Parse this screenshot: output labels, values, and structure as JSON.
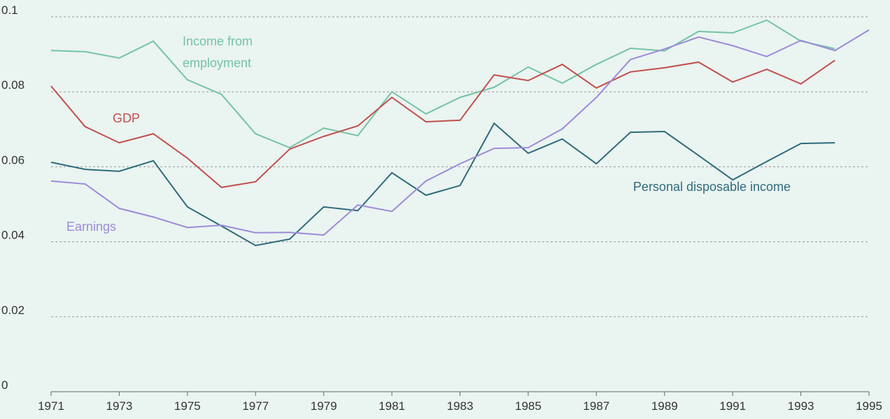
{
  "chart_data": {
    "type": "line",
    "x": [
      1971,
      1972,
      1973,
      1974,
      1975,
      1976,
      1977,
      1978,
      1979,
      1980,
      1981,
      1982,
      1983,
      1984,
      1985,
      1986,
      1987,
      1988,
      1989,
      1990,
      1991,
      1992,
      1993,
      1994,
      1995
    ],
    "series": [
      {
        "name": "Income from employment",
        "color": "#74c3a6",
        "values": [
          0.091,
          0.0907,
          0.089,
          0.0935,
          0.0832,
          0.0793,
          0.0688,
          0.0651,
          0.0703,
          0.0683,
          0.08,
          0.0741,
          0.0785,
          0.0812,
          0.0866,
          0.0823,
          0.0873,
          0.0916,
          0.0909,
          0.0961,
          0.0957,
          0.0991,
          0.0935,
          0.0915,
          null
        ]
      },
      {
        "name": "GDP",
        "color": "#c0504d",
        "values": [
          0.0815,
          0.0707,
          0.0664,
          0.0688,
          0.0623,
          0.0545,
          0.056,
          0.0647,
          0.0681,
          0.0709,
          0.0785,
          0.072,
          0.0724,
          0.0845,
          0.083,
          0.0873,
          0.081,
          0.0853,
          0.0864,
          0.0879,
          0.0826,
          0.086,
          0.0821,
          0.0884,
          null
        ]
      },
      {
        "name": "Personal disposable income",
        "color": "#2f6b7b",
        "values": [
          0.0612,
          0.0593,
          0.0588,
          0.0616,
          0.0493,
          0.0442,
          0.039,
          0.0407,
          0.0493,
          0.0483,
          0.0584,
          0.0524,
          0.055,
          0.0716,
          0.0636,
          0.0674,
          0.0608,
          0.0692,
          0.0694,
          0.063,
          0.0565,
          0.0614,
          0.0662,
          0.0664,
          null
        ]
      },
      {
        "name": "Earnings",
        "color": "#9d8ad8",
        "values": [
          0.0562,
          0.0554,
          0.0489,
          0.0466,
          0.0438,
          0.0444,
          0.0424,
          0.0425,
          0.0418,
          0.0498,
          0.0481,
          0.0562,
          0.0608,
          0.0649,
          0.0651,
          0.0701,
          0.0785,
          0.0886,
          0.0914,
          0.0946,
          0.0923,
          0.0894,
          0.0937,
          0.091,
          0.0965
        ]
      }
    ],
    "xlim": [
      1971,
      1995
    ],
    "xticks": [
      1971,
      1973,
      1975,
      1977,
      1979,
      1981,
      1983,
      1985,
      1987,
      1989,
      1991,
      1993,
      1995
    ],
    "ylim": [
      0,
      0.1
    ],
    "yticks": [
      0,
      0.02,
      0.04,
      0.06,
      0.08,
      0.1
    ],
    "grid": true
  }
}
